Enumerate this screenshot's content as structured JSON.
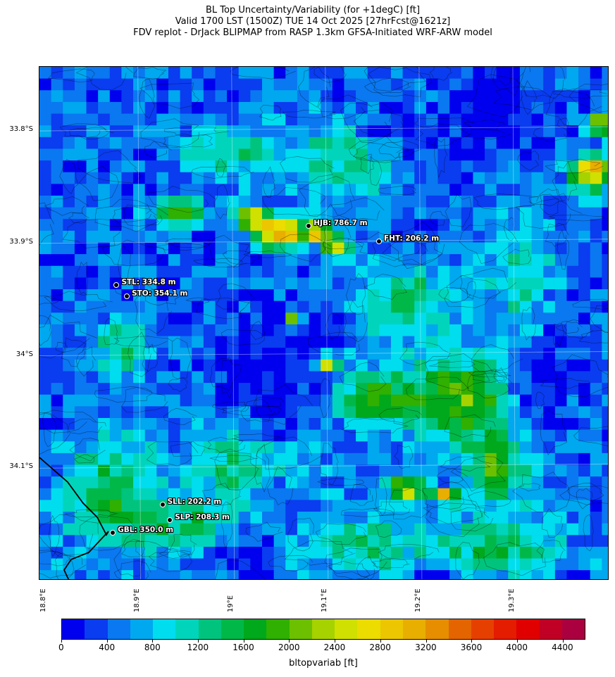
{
  "title": {
    "line1": "BL Top Uncertainty/Variability (for +1degC) [ft]",
    "line2": "Valid 1700 LST (1500Z) TUE 14 Oct 2025 [27hrFcst@1621z]",
    "line3": "FDV replot - DrJack BLIPMAP from RASP 1.3km GFSA-Initiated WRF-ARW model"
  },
  "lat_labels": [
    "33.8°S",
    "33.9°S",
    "34°S",
    "34.1°S"
  ],
  "lon_labels": [
    "18.8°E",
    "18.9°E",
    "19°E",
    "19.1°E",
    "19.2°E",
    "19.3°E"
  ],
  "stations": [
    {
      "id": "HJB",
      "label": "HJB: 786.7 m",
      "lon": 19.083,
      "lat": -33.885
    },
    {
      "id": "FHT",
      "label": "FHT: 206.2 m",
      "lon": 19.158,
      "lat": -33.899
    },
    {
      "id": "STL",
      "label": "STL: 334.8 m",
      "lon": 18.878,
      "lat": -33.938
    },
    {
      "id": "STO",
      "label": "STO: 354.1 m",
      "lon": 18.889,
      "lat": -33.948
    },
    {
      "id": "SLL",
      "label": "SLL: 202.2 m",
      "lon": 18.927,
      "lat": -34.133
    },
    {
      "id": "SLP",
      "label": "SLP: 208.3 m",
      "lon": 18.935,
      "lat": -34.147
    },
    {
      "id": "GBL",
      "label": "GBL: 350.0 m",
      "lon": 18.874,
      "lat": -34.158
    }
  ],
  "colorbar": {
    "label": "bltopvariab [ft]",
    "ticks": [
      "0",
      "400",
      "800",
      "1200",
      "1600",
      "2000",
      "2400",
      "2800",
      "3200",
      "3600",
      "4000",
      "4400"
    ],
    "min": 0,
    "max": 4600,
    "step": 200,
    "colors": [
      "#0000ee",
      "#0a3cf0",
      "#0a78f0",
      "#00a8ef",
      "#00ddee",
      "#00d5bb",
      "#00c47d",
      "#00b848",
      "#00a81c",
      "#30b000",
      "#6cc000",
      "#a6d200",
      "#d0e000",
      "#ecdc00",
      "#ecc600",
      "#e8ae00",
      "#e68e00",
      "#e46400",
      "#e64000",
      "#e41c00",
      "#e00000",
      "#c00024",
      "#aa0040"
    ]
  },
  "map": {
    "lon_range": [
      18.795,
      19.403
    ],
    "lat_range": [
      -34.2,
      -33.743
    ],
    "grid_step_deg": 0.0125
  }
}
